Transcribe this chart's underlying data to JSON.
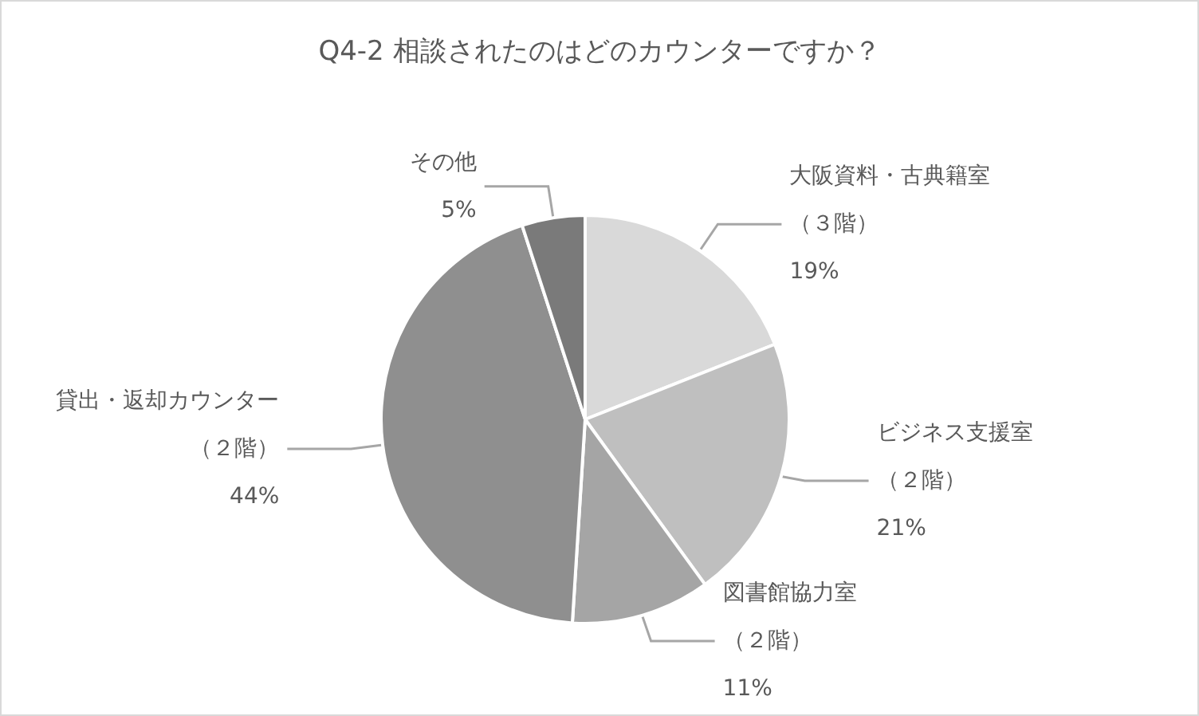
{
  "chart_data": {
    "type": "pie",
    "title": "Q4-2 相談されたのはどのカウンターですか？",
    "categories": [
      "大阪資料・古典籍室（３階）",
      "ビジネス支援室（２階）",
      "図書館協力室（２階）",
      "貸出・返却カウンター（２階）",
      "その他"
    ],
    "values": [
      19,
      21,
      11,
      44,
      5
    ],
    "value_labels": [
      "19%",
      "21%",
      "11%",
      "44%",
      "5%"
    ],
    "colors": [
      "#d9d9d9",
      "#bfbfbf",
      "#a5a5a5",
      "#8f8f8f",
      "#7a7a7a"
    ],
    "legend": false
  }
}
